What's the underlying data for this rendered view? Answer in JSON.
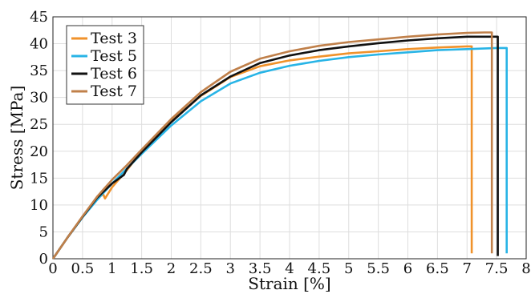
{
  "chart_data": {
    "type": "line",
    "xlabel": "Strain [%]",
    "ylabel": "Stress [MPa]",
    "xlim": [
      0,
      8
    ],
    "ylim": [
      0,
      45
    ],
    "xticks": [
      0,
      0.5,
      1,
      1.5,
      2,
      2.5,
      3,
      3.5,
      4,
      4.5,
      5,
      5.5,
      6,
      6.5,
      7,
      7.5,
      8
    ],
    "xtick_labels": [
      "0",
      "0.5",
      "1",
      "1.5",
      "2",
      "2.5",
      "3",
      "3.5",
      "4",
      "4.5",
      "5",
      "5.5",
      "6",
      "6.5",
      "7",
      "7.5",
      "8"
    ],
    "yticks": [
      0,
      5,
      10,
      15,
      20,
      25,
      30,
      35,
      40,
      45
    ],
    "ytick_labels": [
      "0",
      "5",
      "10",
      "15",
      "20",
      "25",
      "30",
      "35",
      "40",
      "45"
    ],
    "grid": true,
    "legend_position": "top-left",
    "series": [
      {
        "name": "Test 3",
        "color": "#f0922b",
        "x": [
          0,
          0.25,
          0.5,
          0.75,
          0.85,
          0.88,
          1.0,
          1.25,
          1.5,
          2.0,
          2.5,
          3.0,
          3.5,
          4.0,
          4.5,
          5.0,
          5.5,
          6.0,
          6.5,
          7.0,
          7.08,
          7.08
        ],
        "y": [
          0,
          4,
          7.8,
          11.3,
          12.0,
          11.2,
          13.3,
          16.5,
          20.0,
          25.6,
          30.3,
          33.8,
          35.8,
          36.9,
          37.6,
          38.2,
          38.6,
          39.0,
          39.3,
          39.5,
          39.5,
          1.0
        ]
      },
      {
        "name": "Test 5",
        "color": "#28b4e6",
        "x": [
          0,
          0.25,
          0.5,
          0.75,
          1.0,
          1.25,
          1.5,
          2.0,
          2.5,
          3.0,
          3.5,
          4.0,
          4.5,
          5.0,
          5.5,
          6.0,
          6.5,
          7.0,
          7.5,
          7.67,
          7.67
        ],
        "y": [
          0,
          4,
          7.7,
          11.0,
          14.0,
          16.8,
          19.5,
          24.8,
          29.3,
          32.6,
          34.6,
          35.9,
          36.8,
          37.5,
          38.0,
          38.4,
          38.8,
          39.0,
          39.2,
          39.2,
          1.0
        ]
      },
      {
        "name": "Test 6",
        "color": "#111111",
        "x": [
          0,
          0.25,
          0.5,
          0.75,
          1.0,
          1.2,
          1.25,
          1.5,
          2.0,
          2.5,
          3.0,
          3.5,
          4.0,
          4.5,
          5.0,
          5.5,
          6.0,
          6.5,
          7.0,
          7.5,
          7.52,
          7.52
        ],
        "y": [
          0,
          4,
          7.8,
          11.4,
          14.0,
          15.6,
          16.7,
          19.8,
          25.4,
          30.4,
          33.9,
          36.4,
          37.8,
          38.8,
          39.5,
          40.1,
          40.6,
          41.0,
          41.3,
          41.3,
          41.3,
          0.5
        ]
      },
      {
        "name": "Test 7",
        "color": "#c0804a",
        "x": [
          0,
          0.25,
          0.5,
          0.75,
          1.0,
          1.25,
          1.5,
          2.0,
          2.5,
          3.0,
          3.5,
          4.0,
          4.5,
          5.0,
          5.5,
          6.0,
          6.5,
          7.0,
          7.3,
          7.42,
          7.42
        ],
        "y": [
          0,
          4,
          7.9,
          11.6,
          14.7,
          17.4,
          20.3,
          26.0,
          31.0,
          34.8,
          37.2,
          38.6,
          39.6,
          40.3,
          40.8,
          41.3,
          41.7,
          42.0,
          42.1,
          42.1,
          1.0
        ]
      }
    ]
  }
}
